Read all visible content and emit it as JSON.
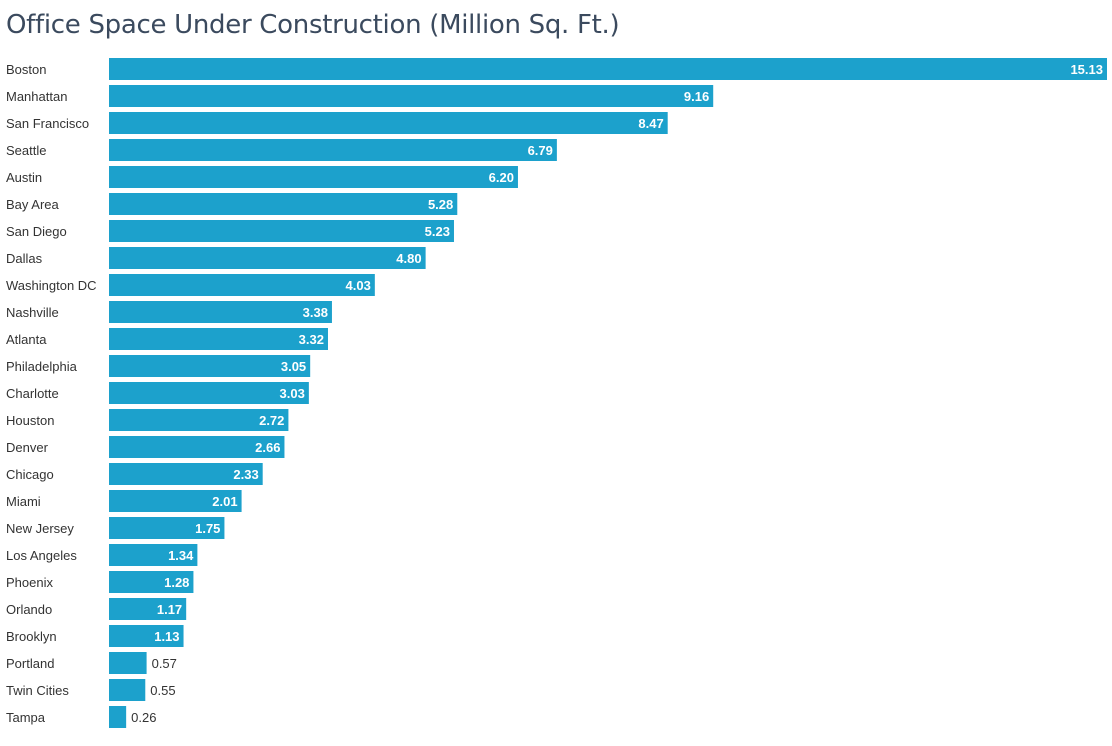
{
  "chart_data": {
    "type": "bar",
    "orientation": "horizontal",
    "title": "Office Space Under Construction (Million Sq. Ft.)",
    "xlabel": "",
    "ylabel": "",
    "grid": false,
    "bar_color": "#1ca1cc",
    "categories": [
      "Boston",
      "Manhattan",
      "San Francisco",
      "Seattle",
      "Austin",
      "Bay Area",
      "San Diego",
      "Dallas",
      "Washington DC",
      "Nashville",
      "Atlanta",
      "Philadelphia",
      "Charlotte",
      "Houston",
      "Denver",
      "Chicago",
      "Miami",
      "New Jersey",
      "Los Angeles",
      "Phoenix",
      "Orlando",
      "Brooklyn",
      "Portland",
      "Twin Cities",
      "Tampa"
    ],
    "values": [
      15.13,
      9.16,
      8.47,
      6.79,
      6.2,
      5.28,
      5.23,
      4.8,
      4.03,
      3.38,
      3.32,
      3.05,
      3.03,
      2.72,
      2.66,
      2.33,
      2.01,
      1.75,
      1.34,
      1.28,
      1.17,
      1.13,
      0.57,
      0.55,
      0.26
    ],
    "value_labels": [
      "15.13",
      "9.16",
      "8.47",
      "6.79",
      "6.20",
      "5.28",
      "5.23",
      "4.80",
      "4.03",
      "3.38",
      "3.32",
      "3.05",
      "3.03",
      "2.72",
      "2.66",
      "2.33",
      "2.01",
      "1.75",
      "1.34",
      "1.28",
      "1.17",
      "1.13",
      "0.57",
      "0.55",
      "0.26"
    ]
  }
}
